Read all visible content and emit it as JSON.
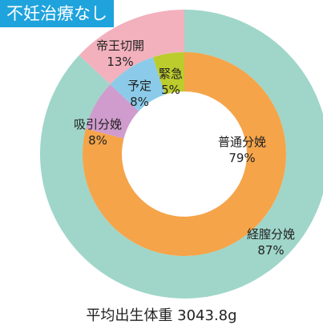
{
  "title": "不妊治療なし",
  "footer": "平均出生体重 3043.8g",
  "colors": {
    "title_bg": "#1fa3dc",
    "outer_vaginal": "#9fd6c9",
    "outer_cesarean": "#f2b1bd",
    "inner_normal": "#f5a44a",
    "inner_vacuum": "#cf9ccd",
    "inner_planned": "#8bcbe9",
    "inner_emergency": "#bccc2d"
  },
  "chart_data": [
    {
      "type": "pie",
      "ring": "outer",
      "labels": [
        "経膣分娩",
        "帝王切開"
      ],
      "values": [
        87,
        13
      ],
      "value_labels": [
        "87%",
        "13%"
      ]
    },
    {
      "type": "pie",
      "ring": "inner",
      "labels": [
        "普通分娩",
        "吸引分娩",
        "予定",
        "緊急"
      ],
      "values": [
        79,
        8,
        8,
        5
      ],
      "value_labels": [
        "79%",
        "8%",
        "8%",
        "5%"
      ]
    }
  ]
}
